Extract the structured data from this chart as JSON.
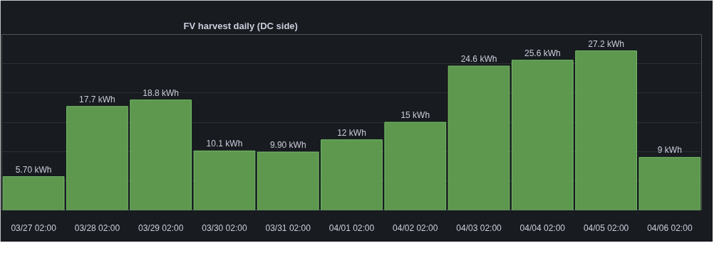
{
  "chart_data": {
    "type": "bar",
    "title": "FV harvest daily (DC side)",
    "categories": [
      "03/27 02:00",
      "03/28 02:00",
      "03/29 02:00",
      "03/30 02:00",
      "03/31 02:00",
      "04/01 02:00",
      "04/02 02:00",
      "04/03 02:00",
      "04/04 02:00",
      "04/05 02:00",
      "04/06 02:00"
    ],
    "values": [
      5.7,
      17.7,
      18.8,
      10.1,
      9.9,
      12,
      15,
      24.6,
      25.6,
      27.2,
      9
    ],
    "value_labels": [
      "5.70 kWh",
      "17.7 kWh",
      "18.8 kWh",
      "10.1 kWh",
      "9.90 kWh",
      "12 kWh",
      "15 kWh",
      "24.6 kWh",
      "25.6 kWh",
      "27.2 kWh",
      "9 kWh"
    ],
    "color": "#629e51",
    "ylim": [
      0,
      30
    ],
    "yticks": [
      {
        "value": 0,
        "label": null
      },
      {
        "value": 5,
        "label": null
      },
      {
        "value": 10,
        "label": null
      },
      {
        "value": 15,
        "label": null
      },
      {
        "value": 20,
        "label": null
      },
      {
        "value": 25,
        "label": null
      },
      {
        "value": 30,
        "label": null
      }
    ],
    "tick_labels": "x",
    "grid": "y"
  }
}
